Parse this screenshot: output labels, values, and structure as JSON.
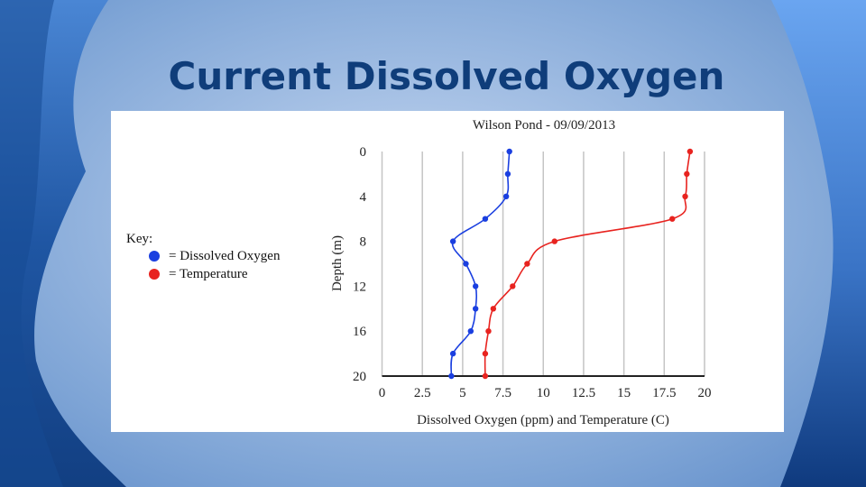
{
  "slide": {
    "title": "Current Dissolved Oxygen",
    "title_color": "#0f3d7a"
  },
  "key": {
    "heading": "Key:",
    "items": [
      {
        "label": "= Dissolved Oxygen",
        "color": "#1a3fe0"
      },
      {
        "label": "= Temperature",
        "color": "#e8231f"
      }
    ]
  },
  "chart_data": {
    "type": "line",
    "title": "Wilson Pond - 09/09/2013",
    "xlabel": "Dissolved Oxygen (ppm) and Temperature (C)",
    "ylabel": "Depth (m)",
    "xlim": [
      0,
      20
    ],
    "ylim": [
      20,
      0
    ],
    "x_ticks": [
      "0",
      "2.5",
      "5",
      "7.5",
      "10",
      "12.5",
      "15",
      "17.5",
      "20"
    ],
    "y_ticks": [
      "0",
      "4",
      "8",
      "12",
      "16",
      "20"
    ],
    "y_inverted": true,
    "grid": "vertical",
    "legend_position": "left",
    "depth": [
      0,
      2,
      4,
      6,
      8,
      10,
      12,
      14,
      16,
      18,
      20
    ],
    "series": [
      {
        "name": "Dissolved Oxygen",
        "color": "#1a3fe0",
        "values": [
          7.9,
          7.8,
          7.7,
          6.4,
          4.4,
          5.2,
          5.8,
          5.8,
          5.5,
          4.4,
          4.3
        ]
      },
      {
        "name": "Temperature",
        "color": "#e8231f",
        "values": [
          19.1,
          18.9,
          18.8,
          18.0,
          10.7,
          9.0,
          8.1,
          6.9,
          6.6,
          6.4,
          6.4
        ]
      }
    ]
  }
}
